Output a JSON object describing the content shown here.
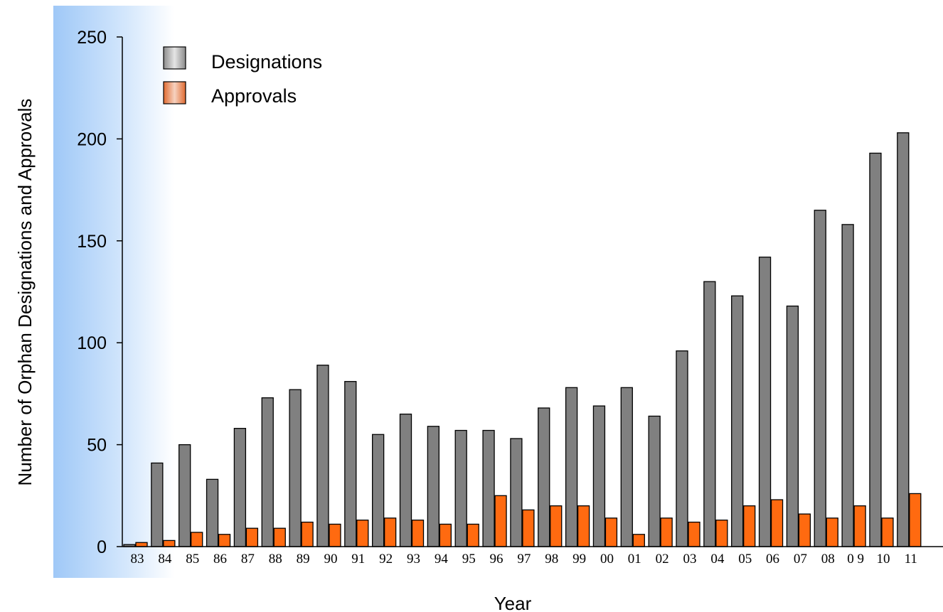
{
  "chart_data": {
    "type": "bar",
    "title": "",
    "xlabel": "Year",
    "ylabel": "Number of Orphan Designations and Approvals",
    "ylim": [
      0,
      250
    ],
    "yticks": [
      "0",
      "50",
      "100",
      "150",
      "200",
      "250"
    ],
    "categories": [
      "83",
      "84",
      "85",
      "86",
      "87",
      "88",
      "89",
      "90",
      "91",
      "92",
      "93",
      "94",
      "95",
      "96",
      "97",
      "98",
      "99",
      "00",
      "01",
      "02",
      "03",
      "04",
      "05",
      "06",
      "07",
      "08",
      "0 9",
      "10",
      "11"
    ],
    "series": [
      {
        "name": "Designations",
        "values": [
          1,
          41,
          50,
          33,
          58,
          73,
          77,
          89,
          81,
          55,
          65,
          59,
          57,
          57,
          53,
          68,
          78,
          69,
          78,
          64,
          96,
          130,
          123,
          142,
          118,
          165,
          158,
          193,
          203
        ]
      },
      {
        "name": "Approvals",
        "values": [
          2,
          3,
          7,
          6,
          9,
          9,
          12,
          11,
          13,
          14,
          13,
          11,
          11,
          25,
          18,
          20,
          20,
          14,
          6,
          14,
          12,
          13,
          20,
          23,
          16,
          14,
          20,
          14,
          26
        ]
      }
    ],
    "legend_position": "top-left",
    "grid": false,
    "colors": {
      "Designations": "#808080",
      "Approvals": "#ff6a10",
      "background_band": "#a8cdf8"
    }
  }
}
